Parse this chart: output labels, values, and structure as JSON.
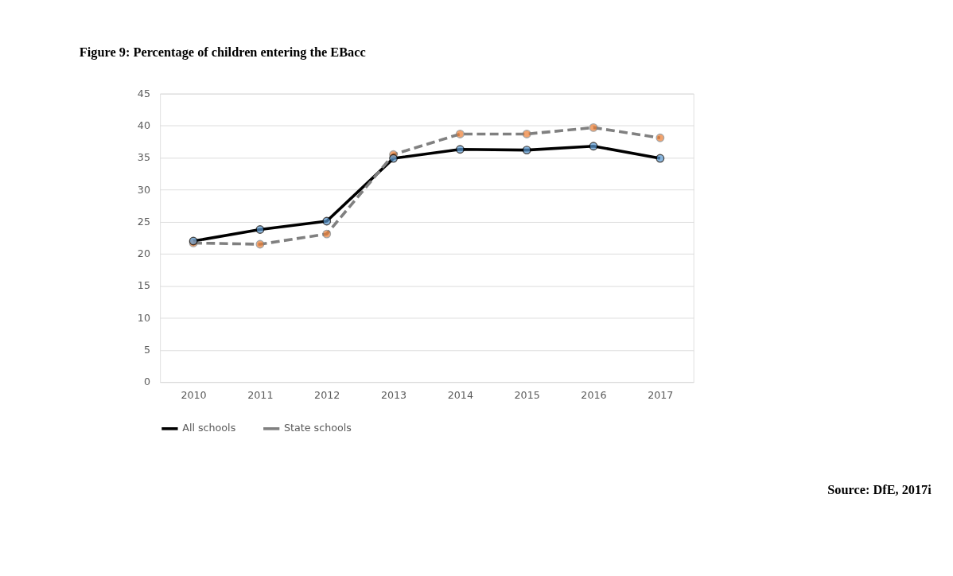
{
  "chart_data": {
    "type": "line",
    "title": "Figure 9: Percentage of children entering the EBacc",
    "categories": [
      "2010",
      "2011",
      "2012",
      "2013",
      "2014",
      "2015",
      "2016",
      "2017"
    ],
    "series": [
      {
        "name": "All schools",
        "color": "#000000",
        "line_style": "solid",
        "colors": [
          "#5b9bd5",
          "#5b9bd5",
          "#5b9bd5",
          "#5b9bd5",
          "#5b9bd5",
          "#5b9bd5",
          "#5b9bd5",
          "#5b9bd5"
        ],
        "values": [
          22.0,
          23.8,
          25.1,
          34.9,
          36.3,
          36.2,
          36.8,
          34.9
        ]
      },
      {
        "name": "State schools",
        "color": "#808080",
        "line_style": "dashed",
        "colors": [
          "#ed7d31",
          "#ed7d31",
          "#ed7d31",
          "#ed7d31",
          "#ed7d31",
          "#ed7d31",
          "#ed7d31",
          "#ed7d31"
        ],
        "values": [
          21.7,
          21.5,
          23.1,
          35.5,
          38.7,
          38.7,
          39.7,
          38.1
        ]
      }
    ],
    "ylim": [
      0,
      45
    ],
    "yticks": [
      0,
      5,
      10,
      15,
      20,
      25,
      30,
      35,
      40,
      45
    ],
    "grid": "y",
    "legend": "bottom",
    "marker": "circle",
    "annotations": [
      "Source: DfE, 2017i"
    ]
  }
}
